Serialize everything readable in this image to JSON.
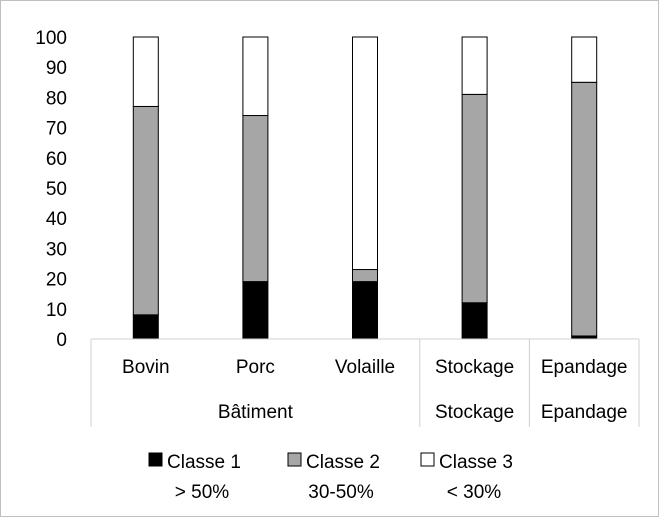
{
  "chart_data": {
    "type": "bar",
    "stacked": true,
    "categories": [
      "Bovin",
      "Porc",
      "Volaille",
      "Stockage",
      "Epandage"
    ],
    "groups": [
      {
        "label": "Bâtiment",
        "members": [
          "Bovin",
          "Porc",
          "Volaille"
        ]
      },
      {
        "label": "Stockage",
        "members": [
          "Stockage"
        ]
      },
      {
        "label": "Epandage",
        "members": [
          "Epandage"
        ]
      }
    ],
    "series": [
      {
        "name": "Classe 1",
        "subtitle": "> 50%",
        "color": "#000000",
        "values": [
          8,
          19,
          19,
          12,
          1
        ]
      },
      {
        "name": "Classe 2",
        "subtitle": "30-50%",
        "color": "#a6a6a6",
        "values": [
          69,
          55,
          4,
          69,
          84
        ]
      },
      {
        "name": "Classe 3",
        "subtitle": "< 30%",
        "color": "#ffffff",
        "values": [
          23,
          26,
          77,
          19,
          15
        ]
      }
    ],
    "yticks": [
      0,
      10,
      20,
      30,
      40,
      50,
      60,
      70,
      80,
      90,
      100
    ],
    "ylim": [
      0,
      100
    ],
    "grid": false,
    "legend_position": "bottom",
    "title": "",
    "xlabel": "",
    "ylabel": ""
  }
}
